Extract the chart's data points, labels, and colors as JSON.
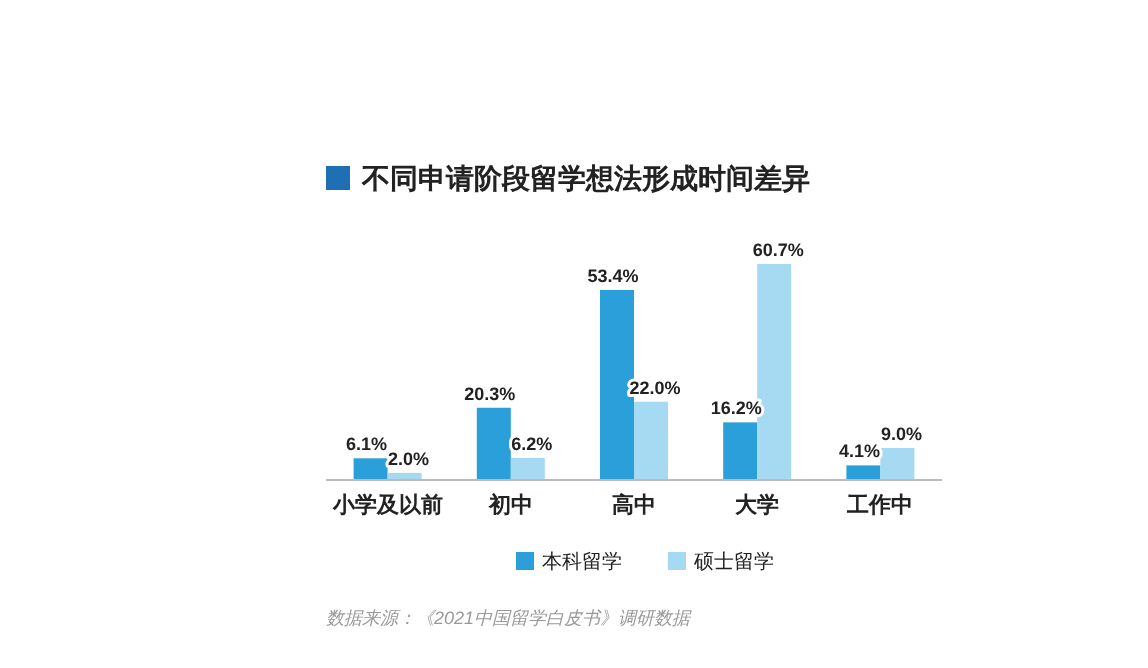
{
  "chart_data": {
    "type": "bar",
    "title": "不同申请阶段留学想法形成时间差异",
    "categories": [
      "小学及以前",
      "初中",
      "高中",
      "大学",
      "工作中"
    ],
    "series": [
      {
        "name": "本科留学",
        "color": "#2b9fd9",
        "values": [
          6.1,
          20.3,
          53.4,
          16.2,
          4.1
        ],
        "value_labels": [
          "6.1%",
          "20.3%",
          "53.4%",
          "16.2%",
          "4.1%"
        ]
      },
      {
        "name": "硕士留学",
        "color": "#a6d9f2",
        "values": [
          2.0,
          6.2,
          22.0,
          60.7,
          9.0
        ],
        "value_labels": [
          "2.0%",
          "6.2%",
          "22.0%",
          "60.7%",
          "9.0%"
        ]
      }
    ],
    "legend": "bottom",
    "annotations": [
      "数据来源：《2021中国留学白皮书》调研数据"
    ]
  }
}
